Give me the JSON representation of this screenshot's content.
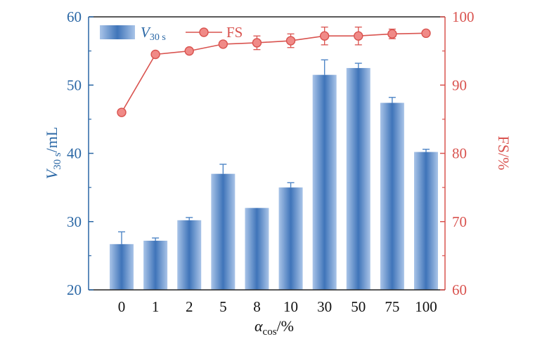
{
  "colors": {
    "bar_light": "#a9c4e8",
    "bar_dark": "#3f74b9",
    "bar_axis": "#2a67a5",
    "fs_color": "#d9534f",
    "error_bar": "#4f86c6"
  },
  "legend": {
    "bar_label_main": "V",
    "bar_label_sub": "30 s",
    "line_label": "FS"
  },
  "chart_data": {
    "type": "bar+line",
    "categories": [
      "0",
      "1",
      "2",
      "5",
      "8",
      "10",
      "30",
      "50",
      "75",
      "100"
    ],
    "series": [
      {
        "name": "V30 s",
        "type": "bar",
        "axis": "left",
        "values": [
          26.7,
          27.2,
          30.2,
          37.0,
          32.0,
          35.0,
          51.5,
          52.5,
          47.4,
          40.2
        ],
        "errors": [
          1.8,
          0.4,
          0.4,
          1.4,
          0.0,
          0.7,
          2.2,
          0.7,
          0.8,
          0.4
        ]
      },
      {
        "name": "FS",
        "type": "line",
        "axis": "right",
        "values": [
          86.0,
          94.5,
          95.0,
          96.0,
          96.2,
          96.5,
          97.2,
          97.2,
          97.5,
          97.6
        ],
        "errors": [
          0.0,
          0.0,
          0.0,
          0.0,
          1.0,
          1.0,
          1.3,
          1.3,
          0.7,
          0.0
        ]
      }
    ],
    "xlabel_main": "α",
    "xlabel_sub": "cos",
    "xlabel_suffix": "/%",
    "ylabel_left_main": "V",
    "ylabel_left_sub": "30 s",
    "ylabel_left_suffix": "/mL",
    "ylabel_right": "FS/%",
    "ylim_left": [
      20,
      60
    ],
    "yticks_left": [
      "20",
      "30",
      "40",
      "50",
      "60"
    ],
    "ylim_right": [
      60,
      100
    ],
    "yticks_right": [
      "60",
      "70",
      "80",
      "90",
      "100"
    ],
    "grid": false,
    "legend_position": "top-left"
  }
}
